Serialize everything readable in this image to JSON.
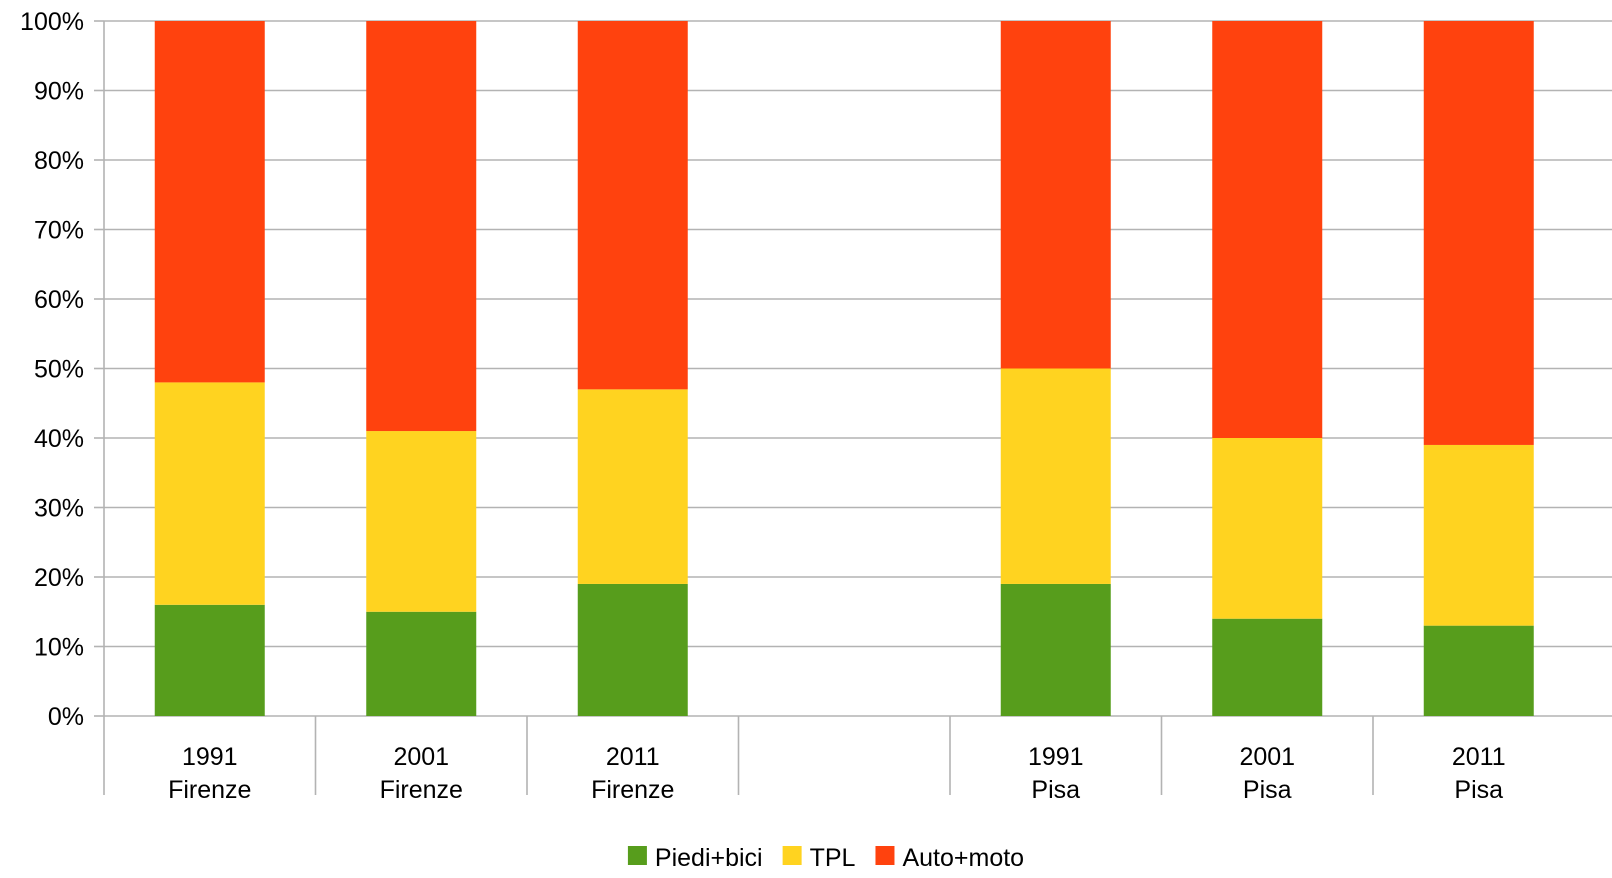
{
  "chart_data": {
    "type": "bar",
    "stacked": true,
    "categories": [
      {
        "year": "1991",
        "city": "Firenze"
      },
      {
        "year": "2001",
        "city": "Firenze"
      },
      {
        "year": "2011",
        "city": "Firenze"
      },
      {
        "year": "",
        "city": ""
      },
      {
        "year": "1991",
        "city": "Pisa"
      },
      {
        "year": "2001",
        "city": "Pisa"
      },
      {
        "year": "2011",
        "city": "Pisa"
      }
    ],
    "series": [
      {
        "name": "Piedi+bici",
        "color": "#579d1c",
        "values": [
          16,
          15,
          19,
          null,
          19,
          14,
          13
        ]
      },
      {
        "name": "TPL",
        "color": "#ffd320",
        "values": [
          32,
          26,
          28,
          null,
          31,
          26,
          26
        ]
      },
      {
        "name": "Auto+moto",
        "color": "#ff420e",
        "values": [
          52,
          59,
          53,
          null,
          50,
          60,
          61
        ]
      }
    ],
    "y_ticks": [
      "0%",
      "10%",
      "20%",
      "30%",
      "40%",
      "50%",
      "60%",
      "70%",
      "80%",
      "90%",
      "100%"
    ],
    "ylim": [
      0,
      100
    ],
    "grid": true,
    "legend": "bottom-center"
  }
}
